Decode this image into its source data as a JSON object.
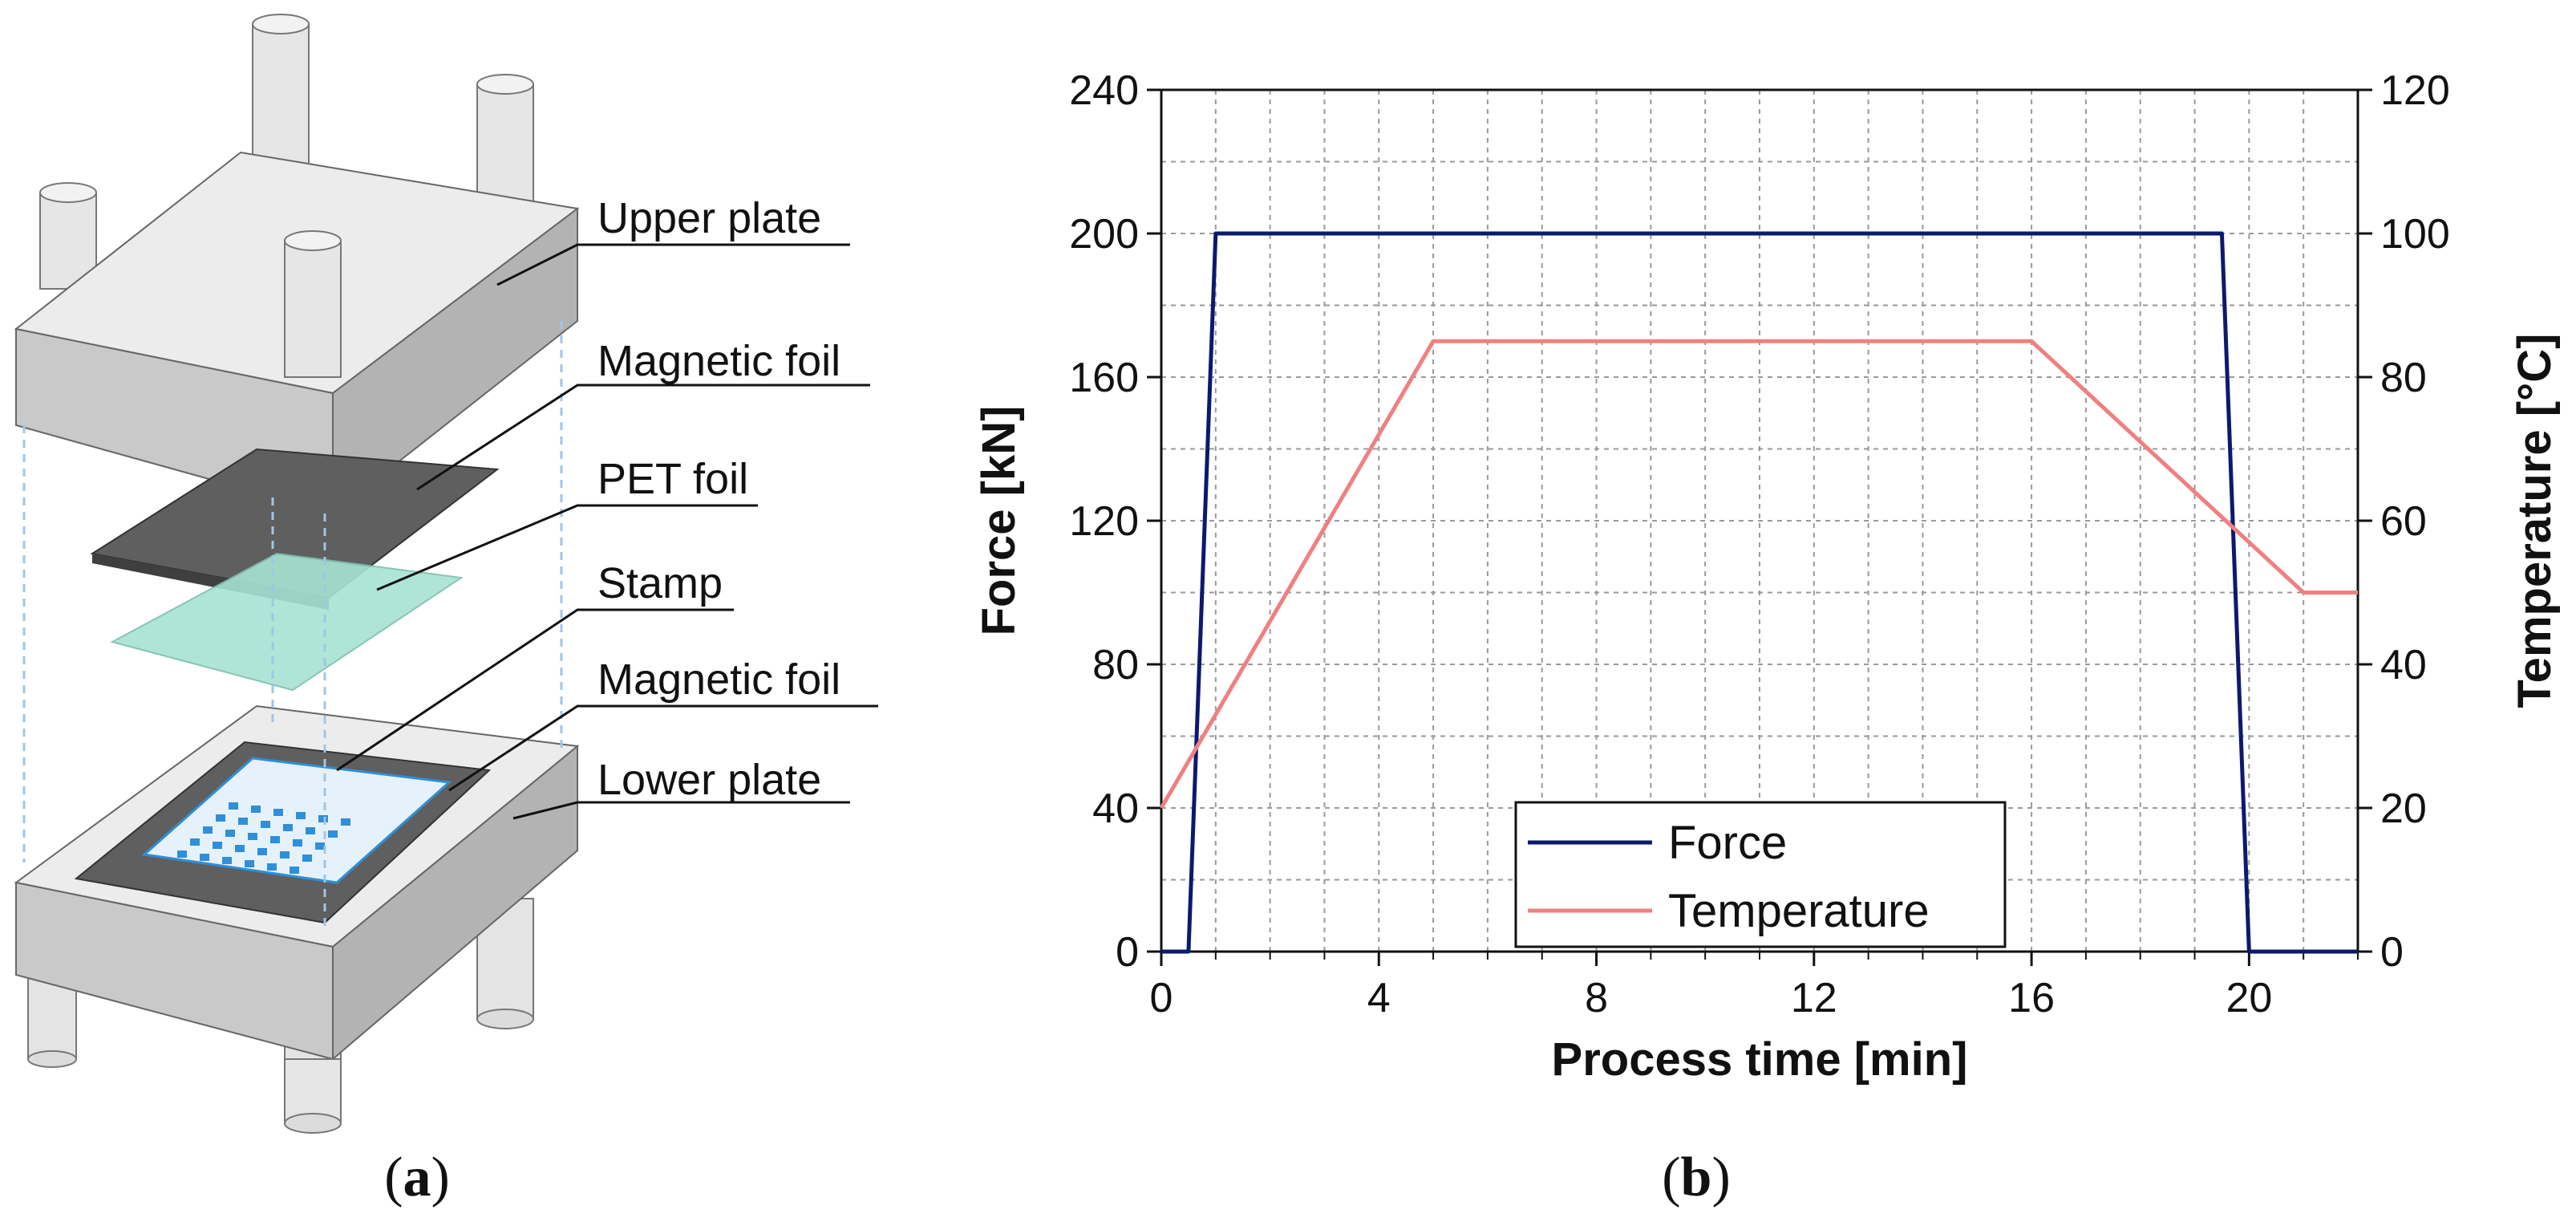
{
  "figure": {
    "panel_a_caption": "(a)",
    "panel_b_caption": "(b)",
    "panel_a_bold": "a",
    "panel_b_bold": "b"
  },
  "diagram": {
    "labels": [
      "Upper plate",
      "Magnetic foil",
      "PET foil",
      "Stamp",
      "Magnetic foil",
      "Lower plate"
    ],
    "colors": {
      "plate_top": "#ececec",
      "plate_side": "#cfcfcf",
      "plate_front": "#bdbdbd",
      "magnetic_foil": "#5f5f5f",
      "pet_foil": "#a7e3d2",
      "stamp": "#e6f2fb",
      "stamp_dots": "#2f8fd8",
      "guide": "#9fc6e8"
    }
  },
  "chart_data": {
    "type": "line",
    "xlabel": "Process time [min]",
    "ylabel": "Force [kN]",
    "y2label": "Temperature [°C]",
    "xlim": [
      0,
      22
    ],
    "ylim": [
      0,
      240
    ],
    "y2lim": [
      0,
      120
    ],
    "xticks": [
      0,
      4,
      8,
      12,
      16,
      20
    ],
    "yticks": [
      0,
      40,
      80,
      120,
      160,
      200,
      240
    ],
    "y2ticks": [
      0,
      20,
      40,
      60,
      80,
      100,
      120
    ],
    "grid": true,
    "legend_position": "bottom-center",
    "series": [
      {
        "name": "Force",
        "axis": "left",
        "color": "#0b1a6e",
        "x": [
          0,
          0.5,
          1.0,
          19.5,
          20.0,
          22
        ],
        "y": [
          0,
          0,
          200,
          200,
          0,
          0
        ]
      },
      {
        "name": "Temperature",
        "axis": "right",
        "color": "#f08080",
        "x": [
          0,
          5,
          16,
          21,
          22
        ],
        "y": [
          20,
          85,
          85,
          50,
          50
        ]
      }
    ]
  }
}
